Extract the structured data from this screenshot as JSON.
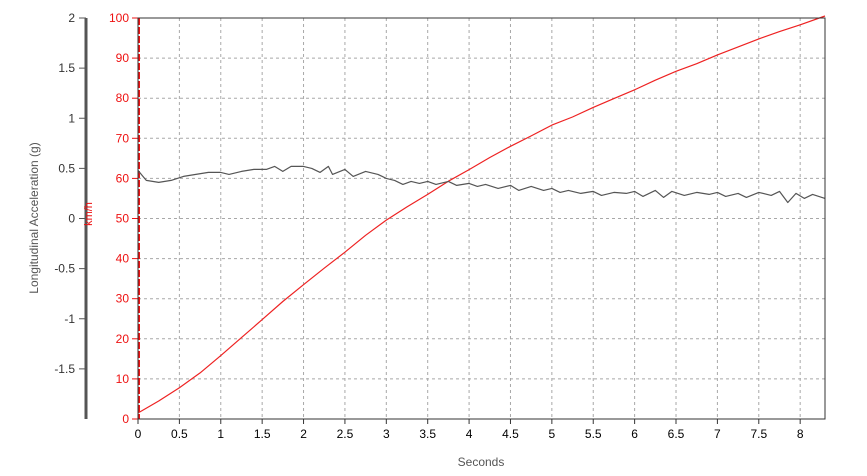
{
  "chart_data": {
    "type": "line",
    "xlabel": "Seconds",
    "x_range": [
      0,
      8.3
    ],
    "x_ticks": [
      0,
      0.5,
      1,
      1.5,
      2,
      2.5,
      3,
      3.5,
      4,
      4.5,
      5,
      5.5,
      6,
      6.5,
      7,
      7.5,
      8
    ],
    "grid": true,
    "axes": {
      "left": {
        "label": "Longitudinal Acceleration (g)",
        "range": [
          -2,
          2
        ],
        "ticks": [
          -1.5,
          -1,
          -0.5,
          0,
          0.5,
          1,
          1.5,
          2
        ],
        "color": "#555555"
      },
      "right": {
        "label": "km/h",
        "range": [
          0,
          100
        ],
        "ticks": [
          0,
          10,
          20,
          30,
          40,
          50,
          60,
          70,
          80,
          90,
          100
        ],
        "color": "#ee1111"
      }
    },
    "series": [
      {
        "axis": "right",
        "color": "#ee2222",
        "x": [
          0,
          0.25,
          0.5,
          0.75,
          1,
          1.25,
          1.5,
          1.75,
          2,
          2.25,
          2.5,
          2.75,
          3,
          3.25,
          3.5,
          3.75,
          4,
          4.25,
          4.5,
          4.75,
          5,
          5.25,
          5.5,
          5.75,
          6,
          6.25,
          6.5,
          6.75,
          7,
          7.25,
          7.5,
          7.75,
          8,
          8.3
        ],
        "values": [
          1.5,
          4.5,
          7.8,
          11.5,
          15.8,
          20.3,
          24.8,
          29.3,
          33.5,
          37.6,
          41.6,
          45.8,
          49.6,
          52.9,
          56.0,
          59.3,
          62.2,
          65.2,
          68.0,
          70.6,
          73.3,
          75.3,
          77.7,
          79.9,
          82.1,
          84.5,
          86.7,
          88.6,
          90.8,
          92.8,
          94.8,
          96.6,
          98.3,
          100.5
        ]
      },
      {
        "axis": "left",
        "color": "#555555",
        "x": [
          0,
          0.05,
          0.1,
          0.25,
          0.4,
          0.55,
          0.7,
          0.85,
          1.0,
          1.1,
          1.25,
          1.4,
          1.55,
          1.65,
          1.75,
          1.85,
          2.0,
          2.1,
          2.2,
          2.3,
          2.35,
          2.5,
          2.6,
          2.75,
          2.9,
          3.0,
          3.1,
          3.2,
          3.3,
          3.4,
          3.5,
          3.6,
          3.75,
          3.85,
          4.0,
          4.1,
          4.2,
          4.35,
          4.5,
          4.6,
          4.75,
          4.9,
          5.0,
          5.1,
          5.2,
          5.35,
          5.5,
          5.6,
          5.75,
          5.9,
          6.0,
          6.1,
          6.25,
          6.35,
          6.45,
          6.6,
          6.75,
          6.9,
          7.0,
          7.1,
          7.25,
          7.35,
          7.5,
          7.65,
          7.75,
          7.85,
          7.95,
          8.05,
          8.15,
          8.3
        ],
        "values": [
          0.48,
          0.43,
          0.38,
          0.36,
          0.38,
          0.42,
          0.44,
          0.46,
          0.46,
          0.44,
          0.47,
          0.49,
          0.49,
          0.52,
          0.47,
          0.52,
          0.52,
          0.5,
          0.46,
          0.52,
          0.44,
          0.49,
          0.42,
          0.47,
          0.44,
          0.4,
          0.38,
          0.34,
          0.37,
          0.35,
          0.37,
          0.34,
          0.37,
          0.33,
          0.35,
          0.32,
          0.34,
          0.3,
          0.33,
          0.28,
          0.32,
          0.28,
          0.3,
          0.26,
          0.28,
          0.25,
          0.27,
          0.23,
          0.26,
          0.25,
          0.27,
          0.22,
          0.28,
          0.21,
          0.27,
          0.23,
          0.26,
          0.24,
          0.26,
          0.22,
          0.25,
          0.21,
          0.26,
          0.23,
          0.27,
          0.16,
          0.25,
          0.2,
          0.24,
          0.2
        ]
      }
    ]
  }
}
